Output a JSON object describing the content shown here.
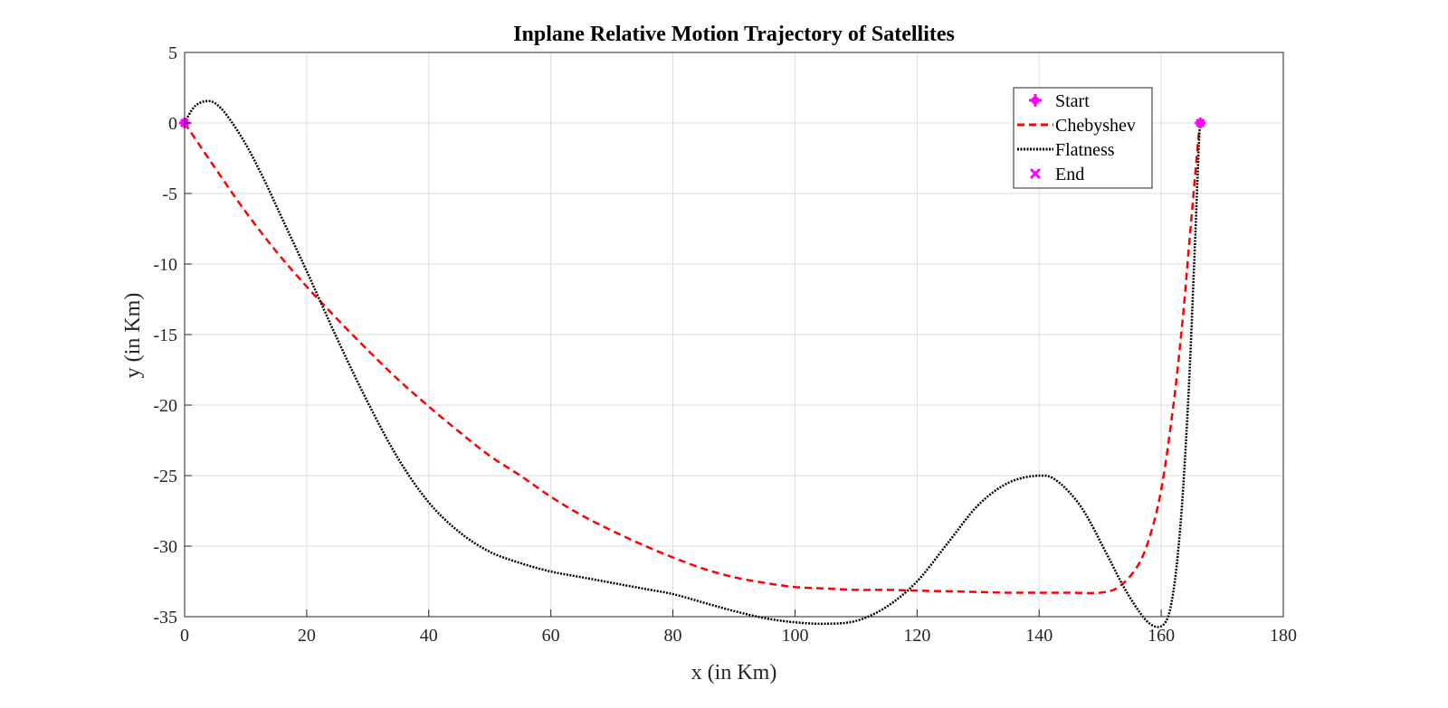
{
  "chart_data": {
    "type": "line",
    "title": "Inplane Relative Motion Trajectory of Satellites",
    "xlabel": "x (in Km)",
    "ylabel": "y (in Km)",
    "xlim": [
      0,
      180
    ],
    "ylim": [
      -35,
      5
    ],
    "xticks": [
      0,
      20,
      40,
      60,
      80,
      100,
      120,
      140,
      160,
      180
    ],
    "yticks": [
      5,
      0,
      -5,
      -10,
      -15,
      -20,
      -25,
      -30,
      -35
    ],
    "grid": true,
    "legend_position": "top-right",
    "legend": [
      "Start",
      "Chebyshev",
      "Flatness",
      "End"
    ],
    "colors": {
      "start_end": "#ff00ff",
      "chebyshev": "#ff0000",
      "flatness": "#000000"
    },
    "series": [
      {
        "name": "Chebyshev",
        "style": "dashed",
        "x": [
          0,
          5,
          10,
          15,
          20,
          25,
          30,
          35,
          40,
          45,
          50,
          55,
          60,
          65,
          70,
          75,
          80,
          85,
          90,
          95,
          100,
          105,
          110,
          115,
          120,
          125,
          130,
          135,
          140,
          145,
          150,
          153,
          156,
          158,
          160,
          162,
          163.5,
          164.5,
          165.3,
          165.8,
          166.1,
          166.3,
          166.4
        ],
        "y": [
          0,
          -3.2,
          -6.3,
          -9.1,
          -11.6,
          -13.9,
          -16.1,
          -18.2,
          -20.1,
          -21.9,
          -23.6,
          -25.0,
          -26.5,
          -27.8,
          -28.9,
          -29.9,
          -30.8,
          -31.6,
          -32.2,
          -32.6,
          -32.9,
          -33.0,
          -33.1,
          -33.1,
          -33.15,
          -33.2,
          -33.25,
          -33.3,
          -33.3,
          -33.3,
          -33.3,
          -32.9,
          -31.5,
          -29.5,
          -26.0,
          -20.0,
          -14.0,
          -9.0,
          -5.0,
          -2.5,
          -1.0,
          -0.3,
          0
        ]
      },
      {
        "name": "Flatness",
        "style": "dotted",
        "x": [
          0,
          1,
          2,
          3.5,
          5,
          7,
          10,
          13,
          16,
          20,
          25,
          30,
          35,
          40,
          45,
          50,
          55,
          60,
          65,
          70,
          75,
          80,
          85,
          90,
          95,
          100,
          105,
          110,
          115,
          120,
          125,
          130,
          135,
          140,
          143,
          147,
          151,
          154,
          157,
          159,
          160.5,
          161.5,
          162.5,
          163.5,
          164.5,
          165.3,
          165.9,
          166.2,
          166.4
        ],
        "y": [
          0,
          0.8,
          1.3,
          1.55,
          1.4,
          0.5,
          -1.5,
          -4.0,
          -6.8,
          -10.5,
          -15.3,
          -19.8,
          -23.8,
          -26.9,
          -29.0,
          -30.4,
          -31.2,
          -31.8,
          -32.2,
          -32.6,
          -33.0,
          -33.4,
          -34.0,
          -34.6,
          -35.1,
          -35.4,
          -35.5,
          -35.3,
          -34.3,
          -32.5,
          -29.8,
          -27.1,
          -25.5,
          -25.0,
          -25.4,
          -27.3,
          -30.5,
          -33.0,
          -35.0,
          -35.7,
          -35.5,
          -34.4,
          -31.5,
          -26.5,
          -19.0,
          -11.0,
          -4.5,
          -1.2,
          0
        ]
      }
    ],
    "markers": [
      {
        "name": "Start",
        "symbol": "+",
        "x": [
          0,
          166.4
        ],
        "y": [
          0,
          0
        ]
      },
      {
        "name": "End",
        "symbol": "x",
        "x": [
          0,
          166.4
        ],
        "y": [
          0,
          0
        ]
      }
    ]
  }
}
